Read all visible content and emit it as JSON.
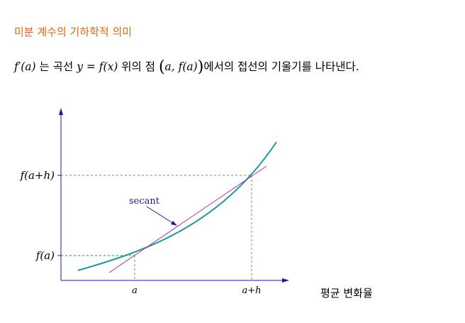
{
  "heading": "미분 계수의 기하학적 의미",
  "statement": {
    "derivative": "f′(a)",
    "particle": "는 곡선",
    "curve_eq": "y = f(x)",
    "above": "위의 점",
    "point_open": "(",
    "point": "a, f(a)",
    "point_close": ")",
    "rest": "에서의 접선의 기울기를 나타낸다."
  },
  "graph": {
    "y_tick_top": "f(a+h)",
    "y_tick_bottom": "f(a)",
    "x_tick_left": "a",
    "x_tick_right": "a+h",
    "secant_label": "secant",
    "colors": {
      "curve": "#1a9a9a",
      "secant": "#b030b0",
      "axes": "#1a1aa0",
      "guides": "#33bb33",
      "label": "#1a1aa0"
    }
  },
  "caption": "평균 변화율"
}
